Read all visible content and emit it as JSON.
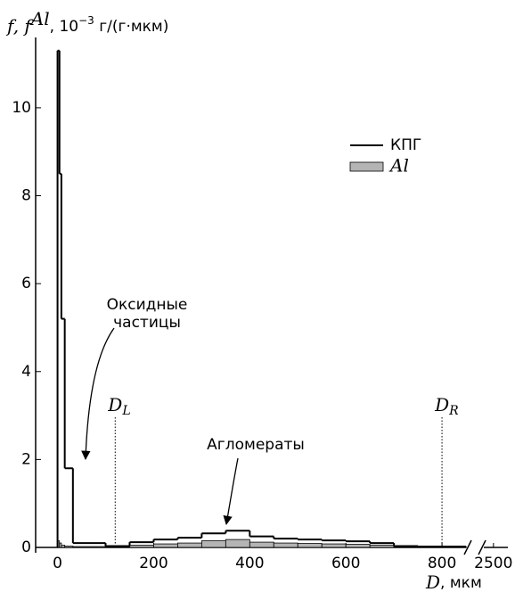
{
  "chart_data": {
    "type": "histogram",
    "y_label": [
      "f, f",
      "Al",
      ", 10",
      "−3",
      " г/(г·мкм)"
    ],
    "x_label": [
      "D",
      ", мкм"
    ],
    "bins": [
      0,
      4,
      8,
      15,
      32,
      100,
      150,
      200,
      250,
      300,
      350,
      400,
      450,
      500,
      550,
      600,
      650,
      700,
      750,
      850
    ],
    "series": [
      {
        "name": "КПГ",
        "color": "#000000",
        "style": "line",
        "values": [
          11.3,
          8.5,
          5.2,
          1.8,
          0.1,
          0.03,
          0.12,
          0.18,
          0.22,
          0.32,
          0.38,
          0.25,
          0.2,
          0.18,
          0.16,
          0.14,
          0.1,
          0.03,
          0.02
        ]
      },
      {
        "name": "Al",
        "color": "#b4b4b4",
        "style": "fill",
        "values": [
          0.15,
          0.1,
          0.05,
          0.03,
          0.02,
          0.01,
          0.05,
          0.08,
          0.1,
          0.15,
          0.18,
          0.12,
          0.1,
          0.09,
          0.08,
          0.07,
          0.05,
          0.01,
          0.01
        ]
      }
    ],
    "xlim": [
      -40,
      2530
    ],
    "x_break": [
      850,
      2480
    ],
    "xticks": [
      0,
      200,
      400,
      600,
      800,
      2500
    ],
    "ylim": [
      0,
      11.6
    ],
    "yticks": [
      0,
      2,
      4,
      6,
      8,
      10
    ],
    "markers": [
      {
        "x": 120,
        "label": "D",
        "sub": "L"
      },
      {
        "x": 800,
        "label": "D",
        "sub": "R"
      }
    ],
    "annotations": {
      "oxide": [
        "Оксидные",
        "частицы"
      ],
      "agglomerates": "Агломераты"
    }
  }
}
